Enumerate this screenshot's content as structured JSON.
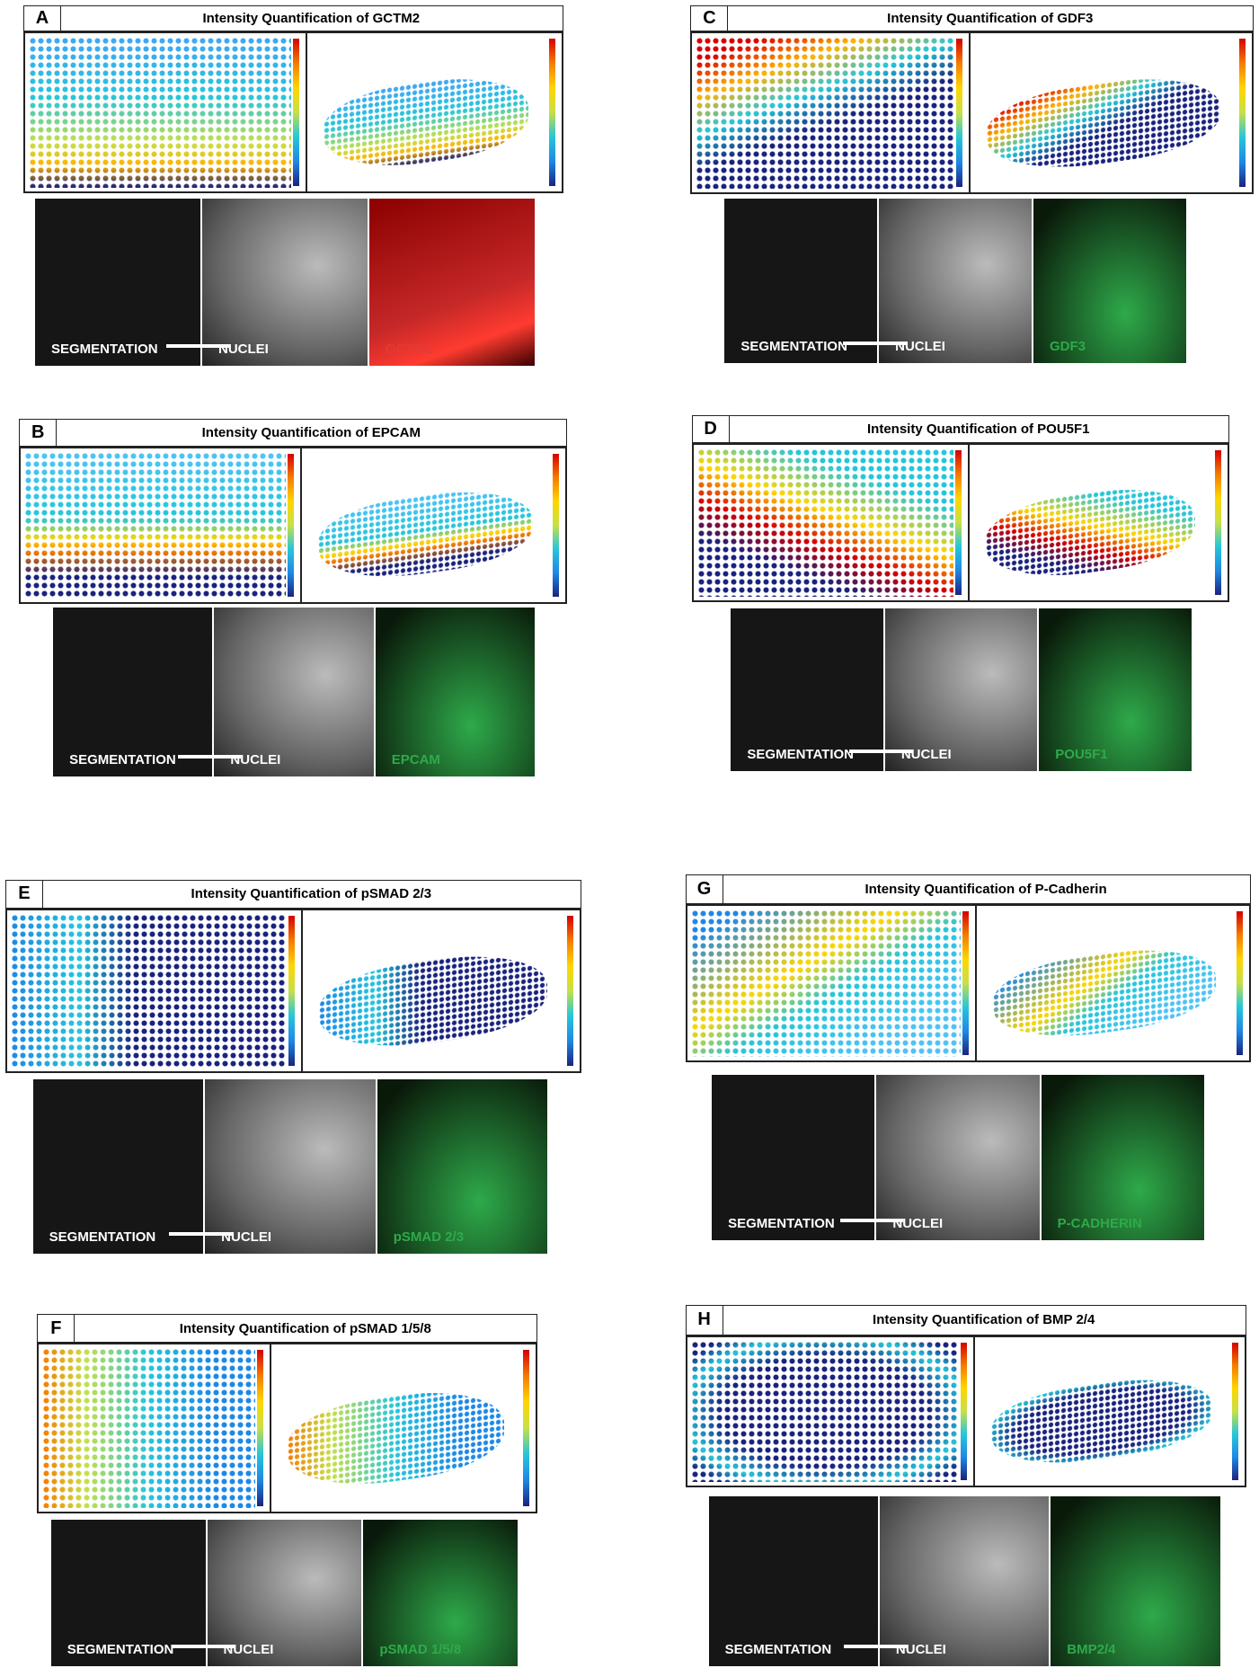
{
  "panels": [
    {
      "letter": "A",
      "title": "Intensity Quantification of GCTM2",
      "labels": [
        "SEGMENTATION",
        "NUCLEI",
        "GCTM2"
      ],
      "marker_color": "#e53935"
    },
    {
      "letter": "C",
      "title": "Intensity Quantification of GDF3",
      "labels": [
        "SEGMENTATION",
        "NUCLEI",
        "GDF3"
      ],
      "marker_color": "#2eaa4a"
    },
    {
      "letter": "B",
      "title": "Intensity Quantification of EPCAM",
      "labels": [
        "SEGMENTATION",
        "NUCLEI",
        "EPCAM"
      ],
      "marker_color": "#2eaa4a"
    },
    {
      "letter": "D",
      "title": "Intensity Quantification of POU5F1",
      "labels": [
        "SEGMENTATION",
        "NUCLEI",
        "POU5F1"
      ],
      "marker_color": "#2eaa4a"
    },
    {
      "letter": "E",
      "title": "Intensity Quantification of pSMAD 2/3",
      "labels": [
        "SEGMENTATION",
        "NUCLEI",
        "pSMAD 2/3"
      ],
      "marker_color": "#2eaa4a"
    },
    {
      "letter": "G",
      "title": "Intensity Quantification of P-Cadherin",
      "labels": [
        "SEGMENTATION",
        "NUCLEI",
        "P-CADHERIN"
      ],
      "marker_color": "#2eaa4a"
    },
    {
      "letter": "F",
      "title": "Intensity Quantification of pSMAD 1/5/8",
      "labels": [
        "SEGMENTATION",
        "NUCLEI",
        "pSMAD 1/5/8"
      ],
      "marker_color": "#2eaa4a"
    },
    {
      "letter": "H",
      "title": "Intensity Quantification of BMP 2/4",
      "labels": [
        "SEGMENTATION",
        "NUCLEI",
        "BMP2/4"
      ],
      "marker_color": "#2eaa4a"
    }
  ]
}
